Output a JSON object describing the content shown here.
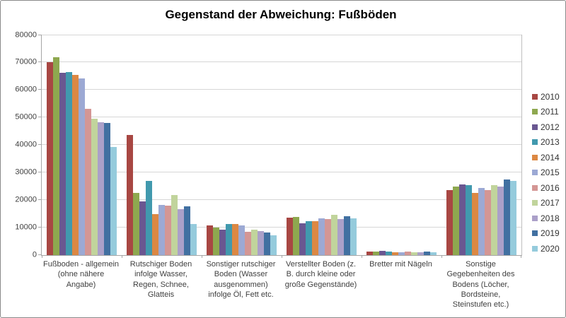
{
  "chart_data": {
    "type": "bar",
    "title": "Gegenstand der Abweichung: Fußböden",
    "xlabel": "",
    "ylabel": "",
    "ylim": [
      0,
      80000
    ],
    "yticks": [
      0,
      10000,
      20000,
      30000,
      40000,
      50000,
      60000,
      70000,
      80000
    ],
    "grid": true,
    "legend_position": "right",
    "categories": [
      "Fußboden - allgemein (ohne nähere Angabe)",
      "Rutschiger Boden infolge Wasser, Regen, Schnee, Glatteis",
      "Sonstiger rutschiger Boden (Wasser ausgenommen) infolge Öl, Fett etc.",
      "Verstellter Boden (z. B. durch kleine oder große Gegenstände)",
      "Bretter mit Nägeln",
      "Sonstige Gegebenheiten des Bodens (Löcher, Bordsteine, Steinstufen etc.)"
    ],
    "series": [
      {
        "name": "2010",
        "color": "#a84743",
        "values": [
          70000,
          43500,
          10800,
          13600,
          1300,
          23600
        ]
      },
      {
        "name": "2011",
        "color": "#8ea84f",
        "values": [
          71800,
          22500,
          10000,
          13900,
          1300,
          24900
        ]
      },
      {
        "name": "2012",
        "color": "#6a5791",
        "values": [
          66100,
          19600,
          9300,
          11500,
          1600,
          25700
        ]
      },
      {
        "name": "2013",
        "color": "#4199ae",
        "values": [
          66500,
          26800,
          11200,
          12200,
          1400,
          25300
        ]
      },
      {
        "name": "2014",
        "color": "#dc8843",
        "values": [
          65500,
          14800,
          11400,
          12300,
          1000,
          22600
        ]
      },
      {
        "name": "2015",
        "color": "#9ca9d4",
        "values": [
          64000,
          18300,
          10700,
          13400,
          900,
          24300
        ]
      },
      {
        "name": "2016",
        "color": "#d49694",
        "values": [
          53200,
          18000,
          8500,
          13200,
          1200,
          23600
        ]
      },
      {
        "name": "2017",
        "color": "#c1d49c",
        "values": [
          49500,
          21900,
          9300,
          14600,
          900,
          25300
        ]
      },
      {
        "name": "2018",
        "color": "#aba0c9",
        "values": [
          48100,
          16700,
          8800,
          13200,
          1000,
          24900
        ]
      },
      {
        "name": "2019",
        "color": "#4170a1",
        "values": [
          48000,
          17800,
          8100,
          14000,
          1200,
          27400
        ]
      },
      {
        "name": "2020",
        "color": "#95cbdc",
        "values": [
          39200,
          11300,
          7200,
          13400,
          1000,
          27000
        ]
      }
    ]
  }
}
